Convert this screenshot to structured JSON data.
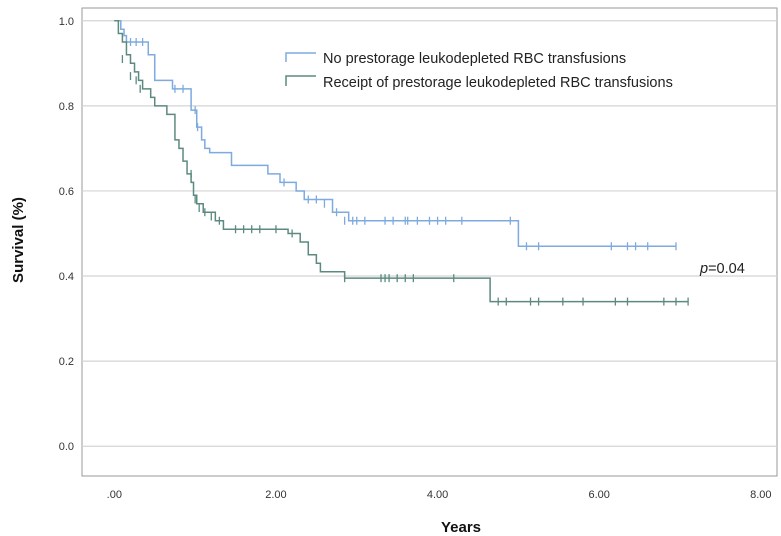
{
  "chart_data": {
    "type": "line",
    "subtype": "kaplan-meier",
    "xlabel": "Years",
    "ylabel": "Survival (%)",
    "xlim": [
      -0.4,
      8.2
    ],
    "ylim": [
      -0.07,
      1.03
    ],
    "x_ticks": [
      0,
      2,
      4,
      6,
      8
    ],
    "x_tick_labels": [
      ".00",
      "2.00",
      "4.00",
      "6.00",
      "8.00"
    ],
    "y_ticks": [
      0,
      0.2,
      0.4,
      0.6,
      0.8,
      1.0
    ],
    "y_tick_labels": [
      "0.0",
      "0.2",
      "0.4",
      "0.6",
      "0.8",
      "1.0"
    ],
    "grid": "horizontal",
    "legend_position": "top-right",
    "annotation": {
      "italic": "p",
      "text": "=0.04"
    },
    "series": [
      {
        "name": "No prestorage leukodepleted  RBC transfusions",
        "color": "#7eaadf",
        "steps": [
          [
            0,
            1.0
          ],
          [
            0.08,
            0.98
          ],
          [
            0.12,
            0.965
          ],
          [
            0.15,
            0.95
          ],
          [
            0.42,
            0.92
          ],
          [
            0.5,
            0.86
          ],
          [
            0.72,
            0.84
          ],
          [
            0.95,
            0.79
          ],
          [
            1.02,
            0.75
          ],
          [
            1.08,
            0.72
          ],
          [
            1.12,
            0.7
          ],
          [
            1.18,
            0.69
          ],
          [
            1.45,
            0.66
          ],
          [
            1.9,
            0.64
          ],
          [
            2.05,
            0.62
          ],
          [
            2.25,
            0.6
          ],
          [
            2.35,
            0.58
          ],
          [
            2.7,
            0.55
          ],
          [
            2.9,
            0.53
          ],
          [
            5.0,
            0.47
          ],
          [
            6.95,
            0.47
          ]
        ],
        "censored": [
          [
            0.2,
            0.95
          ],
          [
            0.27,
            0.95
          ],
          [
            0.35,
            0.95
          ],
          [
            0.75,
            0.84
          ],
          [
            0.85,
            0.84
          ],
          [
            1.0,
            0.79
          ],
          [
            1.03,
            0.75
          ],
          [
            2.1,
            0.62
          ],
          [
            2.4,
            0.58
          ],
          [
            2.5,
            0.58
          ],
          [
            2.6,
            0.57
          ],
          [
            2.75,
            0.55
          ],
          [
            2.85,
            0.53
          ],
          [
            2.95,
            0.53
          ],
          [
            3.0,
            0.53
          ],
          [
            3.1,
            0.53
          ],
          [
            3.35,
            0.53
          ],
          [
            3.45,
            0.53
          ],
          [
            3.6,
            0.53
          ],
          [
            3.63,
            0.53
          ],
          [
            3.75,
            0.53
          ],
          [
            3.9,
            0.53
          ],
          [
            4.0,
            0.53
          ],
          [
            4.1,
            0.53
          ],
          [
            4.3,
            0.53
          ],
          [
            4.9,
            0.53
          ],
          [
            5.1,
            0.47
          ],
          [
            5.25,
            0.47
          ],
          [
            6.15,
            0.47
          ],
          [
            6.35,
            0.47
          ],
          [
            6.45,
            0.47
          ],
          [
            6.6,
            0.47
          ],
          [
            6.95,
            0.47
          ]
        ]
      },
      {
        "name": "Receipt of prestorage leukodepleted  RBC transfusions",
        "color": "#5c8a80",
        "steps": [
          [
            0,
            1.0
          ],
          [
            0.05,
            0.97
          ],
          [
            0.1,
            0.95
          ],
          [
            0.15,
            0.92
          ],
          [
            0.2,
            0.9
          ],
          [
            0.25,
            0.88
          ],
          [
            0.3,
            0.86
          ],
          [
            0.35,
            0.84
          ],
          [
            0.45,
            0.82
          ],
          [
            0.5,
            0.8
          ],
          [
            0.65,
            0.78
          ],
          [
            0.75,
            0.72
          ],
          [
            0.8,
            0.7
          ],
          [
            0.85,
            0.67
          ],
          [
            0.9,
            0.64
          ],
          [
            0.95,
            0.62
          ],
          [
            0.98,
            0.59
          ],
          [
            1.02,
            0.57
          ],
          [
            1.1,
            0.55
          ],
          [
            1.25,
            0.53
          ],
          [
            1.35,
            0.51
          ],
          [
            2.15,
            0.5
          ],
          [
            2.3,
            0.48
          ],
          [
            2.4,
            0.45
          ],
          [
            2.5,
            0.43
          ],
          [
            2.55,
            0.41
          ],
          [
            2.85,
            0.395
          ],
          [
            4.65,
            0.34
          ],
          [
            7.1,
            0.34
          ]
        ],
        "censored": [
          [
            0.1,
            0.91
          ],
          [
            0.2,
            0.87
          ],
          [
            0.27,
            0.86
          ],
          [
            0.32,
            0.84
          ],
          [
            0.95,
            0.64
          ],
          [
            1.0,
            0.58
          ],
          [
            1.05,
            0.56
          ],
          [
            1.12,
            0.55
          ],
          [
            1.2,
            0.54
          ],
          [
            1.3,
            0.53
          ],
          [
            1.5,
            0.51
          ],
          [
            1.6,
            0.51
          ],
          [
            1.7,
            0.51
          ],
          [
            1.8,
            0.51
          ],
          [
            2.0,
            0.51
          ],
          [
            2.2,
            0.5
          ],
          [
            2.85,
            0.395
          ],
          [
            3.3,
            0.395
          ],
          [
            3.35,
            0.395
          ],
          [
            3.4,
            0.395
          ],
          [
            3.5,
            0.395
          ],
          [
            3.6,
            0.395
          ],
          [
            3.7,
            0.395
          ],
          [
            4.2,
            0.395
          ],
          [
            4.75,
            0.34
          ],
          [
            4.85,
            0.34
          ],
          [
            5.15,
            0.34
          ],
          [
            5.25,
            0.34
          ],
          [
            5.55,
            0.34
          ],
          [
            5.8,
            0.34
          ],
          [
            6.2,
            0.34
          ],
          [
            6.35,
            0.34
          ],
          [
            6.8,
            0.34
          ],
          [
            6.95,
            0.34
          ],
          [
            7.1,
            0.34
          ]
        ]
      }
    ]
  }
}
